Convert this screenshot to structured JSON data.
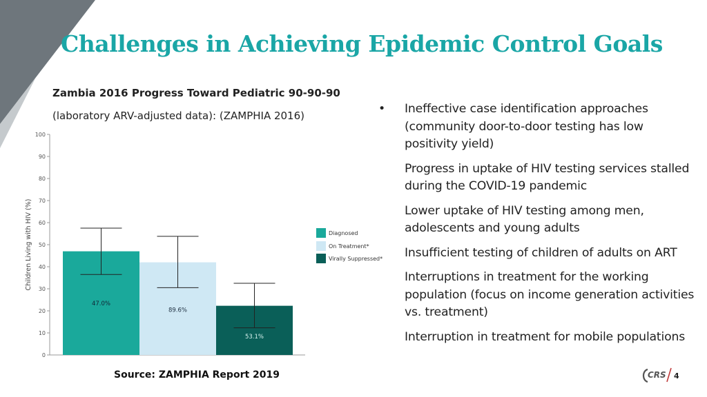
{
  "slide": {
    "title": "Challenges in Achieving Epidemic Control Goals",
    "chart_title": "Zambia 2016 Progress Toward Pediatric 90-90-90",
    "chart_subtitle": "(laboratory ARV-adjusted data): (ZAMPHIA 2016)",
    "source": "Source: ZAMPHIA Report 2019",
    "page_number": "4",
    "logo_text": "CRS",
    "bullet_marker": "•",
    "bullets": [
      "Ineffective case identification approaches (community door-to-door testing has low positivity yield)",
      "Progress in uptake of HIV testing services stalled during the COVID-19 pandemic",
      "Lower uptake of HIV testing among men, adolescents and young adults",
      "Insufficient testing of children of adults on ART",
      "Interruptions in treatment for the working population (focus on income generation activities vs. treatment)",
      "Interruption in treatment for mobile populations"
    ]
  },
  "colors": {
    "title": "#1aa6a6",
    "diagnosed": "#1aa99b",
    "on_treatment": "#cfe8f4",
    "virally_suppressed": "#0a5f58",
    "corner_dark": "#6e767c",
    "corner_light": "#c5cacd"
  },
  "chart_data": {
    "type": "bar",
    "ylabel": "Children Living with HIV (%)",
    "ylim": [
      0,
      100
    ],
    "yticks": [
      "0",
      "10",
      "20",
      "30",
      "40",
      "50",
      "60",
      "70",
      "80",
      "90",
      "100"
    ],
    "categories": [
      "Diagnosed",
      "On Treatment*",
      "Virally Suppressed*"
    ],
    "values": [
      47.0,
      42.0,
      22.3
    ],
    "error_low": [
      36.5,
      30.5,
      12.3
    ],
    "error_high": [
      57.5,
      53.8,
      32.5
    ],
    "data_labels": [
      "47.0%",
      "89.6%",
      "53.1%"
    ],
    "legend": [
      "Diagnosed",
      "On Treatment*",
      "Virally Suppressed*"
    ],
    "legend_position": "right",
    "grid": false
  }
}
